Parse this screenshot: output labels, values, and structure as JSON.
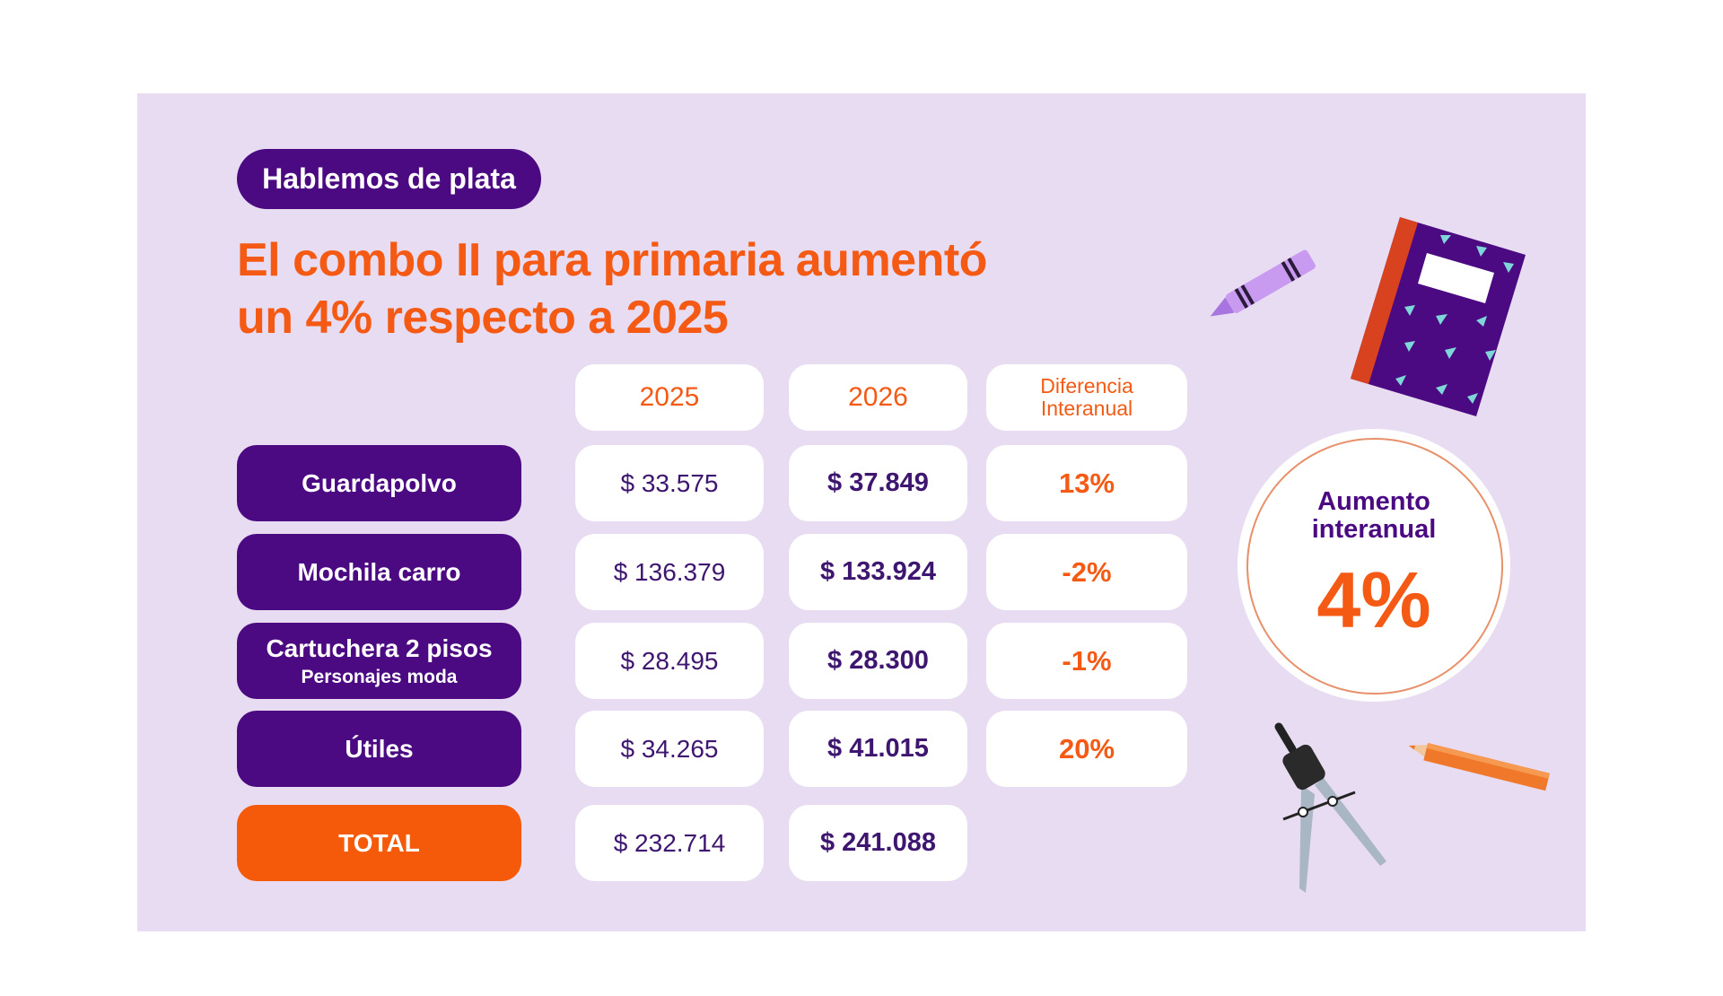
{
  "badge": "Hablemos de plata",
  "title_line1": "El combo II para primaria aumentó",
  "title_line2": "un 4% respecto a 2025",
  "headers": [
    "2025",
    "2026",
    "Diferencia Interanual"
  ],
  "rows": [
    {
      "label": "Guardapolvo",
      "sub": "",
      "v2025": "$ 33.575",
      "v2026": "$ 37.849",
      "diff": "13%"
    },
    {
      "label": "Mochila carro",
      "sub": "",
      "v2025": "$ 136.379",
      "v2026": "$ 133.924",
      "diff": "-2%"
    },
    {
      "label": "Cartuchera 2 pisos",
      "sub": "Personajes moda",
      "v2025": "$ 28.495",
      "v2026": "$ 28.300",
      "diff": "-1%"
    },
    {
      "label": "Útiles",
      "sub": "",
      "v2025": "$ 34.265",
      "v2026": "$ 41.015",
      "diff": "20%"
    }
  ],
  "total": {
    "label": "TOTAL",
    "v2025": "$ 232.714",
    "v2026": "$ 241.088"
  },
  "summary": {
    "label": "Aumento interanual",
    "value": "4%"
  },
  "colors": {
    "purple": "#4b0a82",
    "orange": "#f45a14",
    "background": "#e8dcf2"
  },
  "icons": [
    "crayon-icon",
    "notebook-icon",
    "compass-icon",
    "pencil-icon"
  ]
}
